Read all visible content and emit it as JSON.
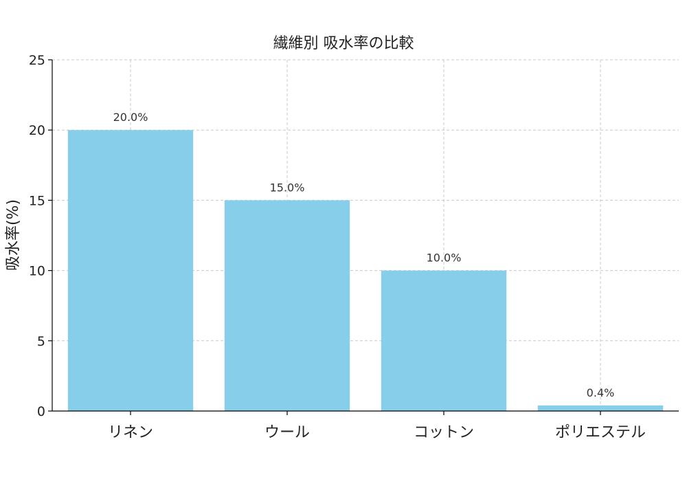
{
  "chart_data": {
    "type": "bar",
    "title": "繊維別 吸水率の比較",
    "xlabel": "",
    "ylabel": "吸水率(%)",
    "categories": [
      "リネン",
      "ウール",
      "コットン",
      "ポリエステル"
    ],
    "values": [
      20.0,
      15.0,
      10.0,
      0.4
    ],
    "data_labels": [
      "20.0%",
      "15.0%",
      "10.0%",
      "0.4%"
    ],
    "ylim": [
      0,
      25
    ],
    "yticks": [
      0,
      5,
      10,
      15,
      20,
      25
    ],
    "grid": true,
    "legend": "none",
    "bar_color": "#87CEEB"
  }
}
